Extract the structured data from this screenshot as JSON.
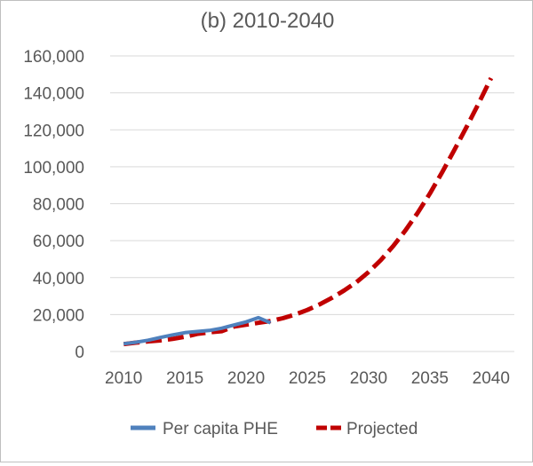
{
  "chart_data": {
    "type": "line",
    "title": "(b) 2010-2040",
    "xlabel": "",
    "ylabel": "",
    "xlim": [
      2008.9,
      2041.9
    ],
    "ylim": [
      0,
      160000
    ],
    "x_ticks": [
      "2010",
      "2015",
      "2020",
      "2025",
      "2030",
      "2035",
      "2040"
    ],
    "y_ticks": [
      "0",
      "20,000",
      "40,000",
      "60,000",
      "80,000",
      "100,000",
      "120,000",
      "140,000",
      "160,000"
    ],
    "grid": {
      "horizontal": true,
      "vertical": false
    },
    "legend_position": "bottom",
    "series": [
      {
        "name": "Per capita PHE",
        "color": "#4f81bd",
        "style": "solid",
        "x": [
          2010,
          2011,
          2012,
          2013,
          2014,
          2015,
          2016,
          2017,
          2018,
          2019,
          2020,
          2021,
          2022
        ],
        "y": [
          4200,
          5000,
          6100,
          7600,
          9000,
          10200,
          10800,
          11400,
          12600,
          14300,
          16000,
          18300,
          15500
        ]
      },
      {
        "name": "Projected",
        "color": "#c00000",
        "style": "dashed",
        "x": [
          2010,
          2011,
          2012,
          2013,
          2014,
          2015,
          2016,
          2017,
          2018,
          2019,
          2020,
          2021,
          2022,
          2023,
          2024,
          2025,
          2026,
          2027,
          2028,
          2029,
          2030,
          2031,
          2032,
          2033,
          2034,
          2035,
          2036,
          2037,
          2038,
          2039,
          2040
        ],
        "y": [
          4000,
          4800,
          5500,
          6000,
          6800,
          8000,
          9500,
          10400,
          11000,
          13500,
          14500,
          15500,
          16500,
          18000,
          20000,
          22500,
          25500,
          29000,
          33000,
          37500,
          43000,
          49500,
          57000,
          65500,
          75000,
          85500,
          97000,
          109000,
          121500,
          134500,
          148000
        ]
      }
    ]
  }
}
